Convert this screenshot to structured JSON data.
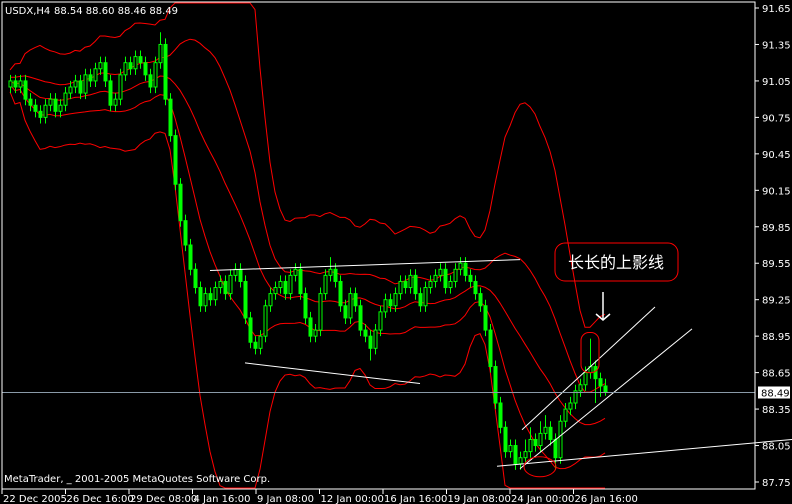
{
  "header": {
    "symbol_timeframe": "USDX,H4",
    "ohlc": "88.54 88.60 88.46 88.49"
  },
  "copyright": "MetaTrader, _ 2001-2005 MetaQuotes Software Corp.",
  "annotation": {
    "text": "长长的上影线"
  },
  "colors": {
    "background": "#000000",
    "candle": "#00ff00",
    "bands": "#ff0000",
    "trendlines": "#ffffff",
    "price_line": "#8a9aa8",
    "frame": "#ffffff"
  },
  "chart_data": {
    "type": "candlestick",
    "title": "USDX,H4",
    "y_ticks": [
      "91.65",
      "91.35",
      "91.05",
      "90.75",
      "90.45",
      "90.15",
      "89.85",
      "89.55",
      "89.25",
      "88.95",
      "88.65",
      "88.35",
      "88.05",
      "87.75"
    ],
    "ylim": [
      87.75,
      91.65
    ],
    "x_ticks": [
      "22 Dec 2005",
      "26 Dec 16:00",
      "29 Dec 08:00",
      "4 Jan 16:00",
      "9 Jan 08:00",
      "12 Jan 00:00",
      "16 Jan 16:00",
      "19 Jan 08:00",
      "24 Jan 00:00",
      "26 Jan 16:00"
    ],
    "current_price": "88.49",
    "grid": false,
    "open": [
      91.0,
      91.05,
      91.0,
      91.05,
      90.9,
      90.85,
      90.8,
      90.75,
      90.85,
      90.9,
      90.8,
      90.85,
      90.95,
      91.0,
      91.05,
      90.95,
      91.1,
      91.05,
      91.15,
      91.2,
      91.05,
      90.85,
      90.9,
      91.1,
      91.2,
      91.15,
      91.25,
      91.2,
      91.1,
      91.0,
      91.2,
      91.35,
      90.9,
      90.6,
      90.2,
      89.9,
      89.7,
      89.5,
      89.35,
      89.2,
      89.3,
      89.25,
      89.35,
      89.4,
      89.3,
      89.45,
      89.5,
      89.4,
      89.1,
      88.9,
      88.85,
      88.95,
      89.2,
      89.3,
      89.35,
      89.4,
      89.3,
      89.45,
      89.5,
      89.3,
      89.1,
      88.95,
      89.0,
      89.3,
      89.45,
      89.5,
      89.4,
      89.2,
      89.1,
      89.3,
      89.2,
      89.0,
      88.95,
      88.85,
      89.0,
      89.15,
      89.25,
      89.2,
      89.3,
      89.4,
      89.35,
      89.45,
      89.3,
      89.2,
      89.35,
      89.4,
      89.45,
      89.5,
      89.35,
      89.4,
      89.5,
      89.55,
      89.45,
      89.4,
      89.3,
      89.2,
      89.0,
      88.7,
      88.4,
      88.2,
      88.0,
      88.05,
      87.9,
      87.95,
      88.0,
      88.1,
      88.05,
      88.15,
      88.2,
      88.1,
      87.95,
      88.25,
      88.35,
      88.4,
      88.5,
      88.55,
      88.65,
      88.7,
      88.6,
      88.54
    ],
    "high": [
      91.1,
      91.1,
      91.1,
      91.1,
      90.95,
      90.9,
      90.85,
      90.9,
      90.95,
      90.95,
      90.9,
      91.0,
      91.05,
      91.1,
      91.1,
      91.15,
      91.15,
      91.2,
      91.25,
      91.25,
      91.1,
      90.95,
      91.15,
      91.25,
      91.25,
      91.3,
      91.3,
      91.25,
      91.15,
      91.25,
      91.45,
      91.4,
      90.95,
      90.65,
      90.25,
      89.95,
      89.75,
      89.55,
      89.4,
      89.35,
      89.35,
      89.4,
      89.45,
      89.45,
      89.5,
      89.55,
      89.55,
      89.45,
      89.15,
      88.95,
      89.0,
      89.25,
      89.35,
      89.4,
      89.45,
      89.45,
      89.5,
      89.55,
      89.55,
      89.35,
      89.15,
      89.05,
      89.35,
      89.5,
      89.6,
      89.55,
      89.45,
      89.25,
      89.35,
      89.35,
      89.25,
      89.05,
      89.0,
      89.05,
      89.2,
      89.3,
      89.3,
      89.35,
      89.45,
      89.45,
      89.5,
      89.5,
      89.35,
      89.4,
      89.45,
      89.5,
      89.55,
      89.55,
      89.45,
      89.55,
      89.6,
      89.6,
      89.5,
      89.45,
      89.35,
      89.25,
      89.05,
      88.75,
      88.45,
      88.25,
      88.1,
      88.1,
      88.0,
      88.1,
      88.2,
      88.15,
      88.25,
      88.3,
      88.25,
      88.15,
      88.3,
      88.4,
      88.45,
      88.55,
      88.6,
      88.7,
      88.93,
      88.75,
      88.65,
      88.6
    ],
    "low": [
      90.95,
      90.95,
      90.95,
      90.85,
      90.8,
      90.75,
      90.7,
      90.7,
      90.8,
      90.75,
      90.75,
      90.8,
      90.9,
      90.95,
      90.9,
      90.9,
      91.0,
      91.0,
      91.1,
      91.0,
      90.8,
      90.8,
      90.85,
      91.05,
      91.1,
      91.1,
      91.15,
      91.05,
      90.95,
      90.95,
      91.15,
      90.85,
      90.55,
      90.15,
      89.85,
      89.65,
      89.45,
      89.3,
      89.15,
      89.15,
      89.2,
      89.2,
      89.3,
      89.25,
      89.25,
      89.4,
      89.35,
      89.05,
      88.85,
      88.8,
      88.8,
      88.9,
      89.15,
      89.25,
      89.3,
      89.25,
      89.25,
      89.4,
      89.25,
      89.05,
      88.9,
      88.9,
      88.95,
      89.25,
      89.4,
      89.35,
      89.15,
      89.05,
      89.05,
      89.15,
      88.95,
      88.9,
      88.75,
      88.8,
      88.95,
      89.1,
      89.15,
      89.15,
      89.25,
      89.3,
      89.3,
      89.25,
      89.15,
      89.15,
      89.3,
      89.35,
      89.4,
      89.3,
      89.3,
      89.35,
      89.45,
      89.4,
      89.35,
      89.25,
      89.15,
      88.95,
      88.65,
      88.35,
      88.15,
      87.95,
      87.95,
      87.85,
      87.85,
      87.9,
      87.95,
      88.0,
      88.0,
      88.1,
      88.05,
      87.85,
      87.9,
      88.2,
      88.3,
      88.35,
      88.45,
      88.5,
      88.6,
      88.4,
      88.45,
      88.46
    ],
    "close": [
      91.05,
      91.0,
      91.05,
      90.9,
      90.85,
      90.8,
      90.75,
      90.85,
      90.9,
      90.8,
      90.85,
      90.95,
      91.0,
      91.05,
      90.95,
      91.1,
      91.05,
      91.15,
      91.2,
      91.05,
      90.85,
      90.9,
      91.1,
      91.2,
      91.15,
      91.25,
      91.2,
      91.1,
      91.0,
      91.2,
      91.35,
      90.9,
      90.6,
      90.2,
      89.9,
      89.7,
      89.5,
      89.35,
      89.2,
      89.3,
      89.25,
      89.35,
      89.4,
      89.3,
      89.45,
      89.5,
      89.4,
      89.1,
      88.9,
      88.85,
      88.95,
      89.2,
      89.3,
      89.35,
      89.4,
      89.3,
      89.45,
      89.5,
      89.3,
      89.1,
      88.95,
      89.0,
      89.3,
      89.45,
      89.5,
      89.4,
      89.2,
      89.1,
      89.3,
      89.2,
      89.0,
      88.95,
      88.85,
      89.0,
      89.15,
      89.25,
      89.2,
      89.3,
      89.4,
      89.35,
      89.45,
      89.3,
      89.2,
      89.35,
      89.4,
      89.45,
      89.5,
      89.35,
      89.4,
      89.5,
      89.55,
      89.45,
      89.4,
      89.3,
      89.2,
      89.0,
      88.7,
      88.4,
      88.2,
      88.0,
      88.05,
      87.9,
      87.95,
      88.0,
      88.1,
      88.05,
      88.15,
      88.2,
      88.1,
      87.95,
      88.25,
      88.35,
      88.4,
      88.5,
      88.55,
      88.65,
      88.7,
      88.6,
      88.54,
      88.49
    ],
    "indicators": [
      {
        "type": "bollinger_bands",
        "period": 20,
        "deviation": 1
      },
      {
        "type": "bollinger_bands",
        "period": 20,
        "deviation": 3
      }
    ],
    "trendlines": [
      {
        "from": [
          40,
          89.49
        ],
        "to": [
          102,
          89.58
        ]
      },
      {
        "from": [
          47,
          88.73
        ],
        "to": [
          82,
          88.56
        ]
      },
      {
        "from": [
          102.4,
          88.18
        ],
        "to": [
          129,
          89.19
        ]
      },
      {
        "from": [
          102,
          87.86
        ],
        "to": [
          136.4,
          89.01
        ]
      },
      {
        "from": [
          97.4,
          87.88
        ],
        "to": [
          156.4,
          88.1
        ]
      }
    ],
    "highlights": [
      {
        "shape": "rounded-rect",
        "bar": 116,
        "price_range": [
          88.65,
          88.98
        ]
      },
      {
        "shape": "circle",
        "bar": 106,
        "price_range": [
          87.8,
          87.95
        ]
      }
    ]
  }
}
